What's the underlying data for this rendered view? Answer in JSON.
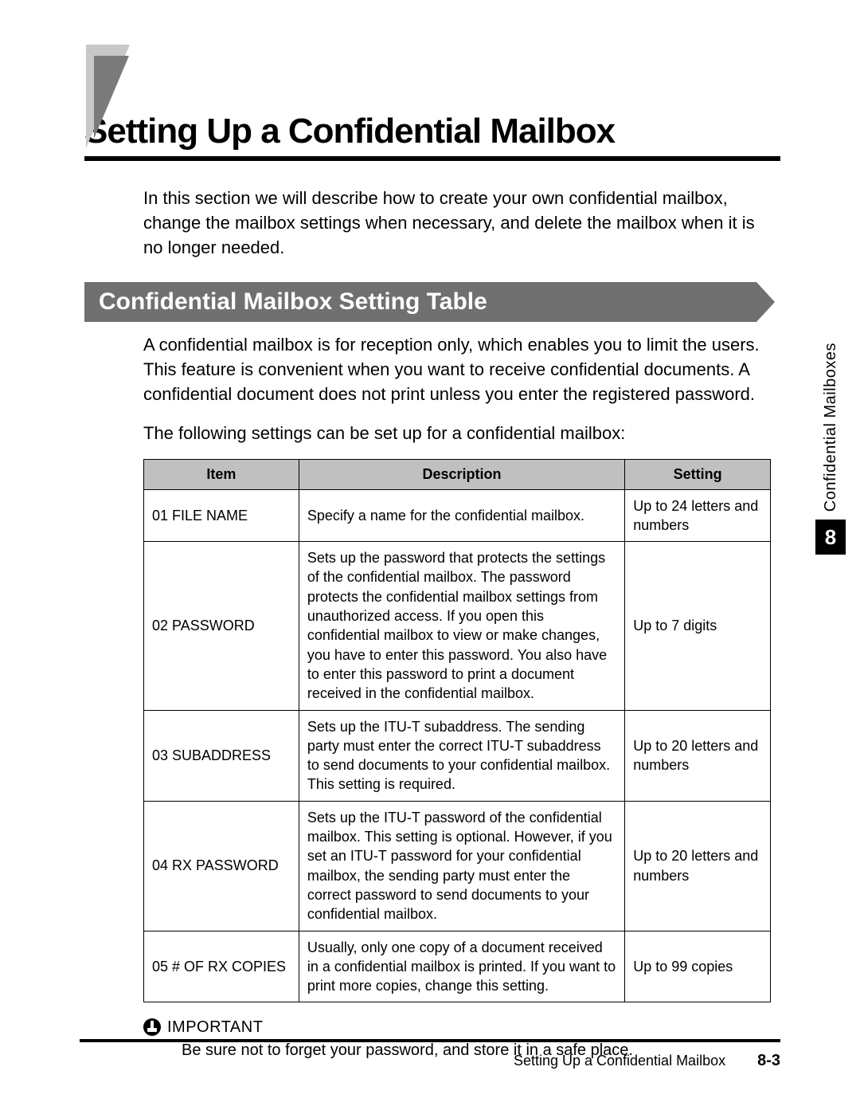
{
  "page": {
    "mainTitle": "Setting Up a Confidential Mailbox",
    "intro": "In this section we will describe how to create your own confidential mailbox, change the mailbox settings when necessary, and delete the mailbox when it is no longer needed.",
    "sectionBanner": "Confidential Mailbox Setting Table",
    "sectionDesc": "A confidential mailbox is for reception only, which enables you to limit the users. This feature is convenient when you want to receive confidential documents. A confidential document does not print unless you enter the registered password.",
    "sectionFollow": "The following settings can be set up for a confidential mailbox:",
    "importantLabel": "IMPORTANT",
    "importantText": "Be sure not to forget your password, and store it in a safe place.",
    "footerTitle": "Setting Up a Confidential Mailbox",
    "footerPage": "8-3"
  },
  "sideTab": {
    "label": "Confidential Mailboxes",
    "chapter": "8"
  },
  "table": {
    "headers": {
      "item": "Item",
      "description": "Description",
      "setting": "Setting"
    },
    "rows": [
      {
        "item": "01 FILE NAME",
        "description": "Specify a name for the confidential mailbox.",
        "setting": "Up to 24 letters and numbers"
      },
      {
        "item": "02 PASSWORD",
        "description": "Sets up the password that protects the settings of the confidential mailbox. The password protects the confidential mailbox settings from unauthorized access. If you open this confidential mailbox to view or make changes, you have to enter this password. You also have to enter this password to print a document received in the confidential mailbox.",
        "setting": "Up to 7 digits"
      },
      {
        "item": "03 SUBADDRESS",
        "description": "Sets up the ITU-T subaddress. The sending party must enter the correct ITU-T subaddress to send documents to your confidential mailbox. This setting is required.",
        "setting": "Up to 20 letters and numbers"
      },
      {
        "item": "04 RX PASSWORD",
        "description": "Sets up the ITU-T password of the confidential mailbox. This setting is optional. However, if you set an ITU-T password for your confidential mailbox, the sending party must enter the correct password to send documents to your confidential mailbox.",
        "setting": "Up to 20 letters and numbers"
      },
      {
        "item": "05 # OF RX COPIES",
        "description": "Usually, only one copy of a document received in a confidential mailbox is printed. If you want to print more copies, change this setting.",
        "setting": "Up to 99 copies"
      }
    ]
  },
  "styling": {
    "bannerBg": "#707070",
    "bannerText": "#ffffff",
    "tableHeaderBg": "#c0c0c0",
    "tableBorder": "#000000",
    "sideTabBoxBg": "#000000",
    "sideTabBoxText": "#ffffff",
    "markerOuter": "#c8c8c8",
    "markerInner": "#7a7a7a",
    "mainTitleSize": 44,
    "bodyTextSize": 22,
    "tableTextSize": 18
  }
}
